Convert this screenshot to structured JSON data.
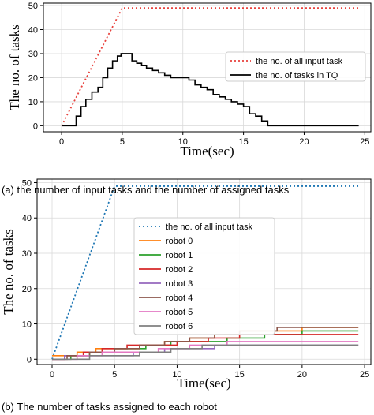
{
  "captions": {
    "a": "(a) the number of input tasks and the number of assigned tasks",
    "b": "(b) The number of tasks assigned to each robot"
  },
  "chart_data": [
    {
      "type": "line",
      "title": "",
      "xlabel": "Time(sec)",
      "ylabel": "The no. of tasks",
      "xlim": [
        -1.5,
        25.5
      ],
      "ylim": [
        -2.5,
        51
      ],
      "xticks": [
        0,
        5,
        10,
        15,
        20,
        25
      ],
      "yticks": [
        0,
        10,
        20,
        30,
        40,
        50
      ],
      "grid": true,
      "legend_position": "center-right",
      "series": [
        {
          "name": "the no. of all input task",
          "color": "#e8413c",
          "style": "dotted",
          "x": [
            0,
            5,
            24.5
          ],
          "y": [
            0,
            49,
            49
          ]
        },
        {
          "name": "the no. of tasks in TQ",
          "color": "#000000",
          "style": "solid",
          "x": [
            0,
            0.8,
            1.2,
            1.6,
            2.0,
            2.5,
            3.0,
            3.4,
            3.8,
            4.2,
            4.6,
            4.9,
            5.4,
            5.8,
            6.2,
            6.6,
            7.0,
            7.5,
            8.0,
            8.5,
            9.0,
            9.5,
            10.0,
            10.5,
            11.0,
            11.5,
            12.0,
            12.5,
            13.0,
            13.5,
            14.0,
            14.5,
            15.0,
            15.5,
            16.0,
            16.5,
            17.0,
            24.5
          ],
          "y": [
            0,
            0,
            4,
            8,
            11,
            14,
            16,
            20,
            24,
            27,
            29,
            30,
            30,
            27,
            26,
            25,
            24,
            23,
            22,
            21,
            20,
            20,
            20,
            19,
            17,
            16,
            15,
            13,
            12,
            11,
            10,
            9,
            8,
            5,
            4,
            2,
            0,
            0
          ]
        }
      ]
    },
    {
      "type": "line",
      "title": "",
      "xlabel": "Time(sec)",
      "ylabel": "The no. of tasks",
      "xlim": [
        -1.2,
        25.5
      ],
      "ylim": [
        -1.5,
        51
      ],
      "xticks": [
        0,
        5,
        10,
        15,
        20,
        25
      ],
      "yticks": [
        0,
        10,
        20,
        30,
        40,
        50
      ],
      "grid": true,
      "legend_position": "center",
      "series": [
        {
          "name": "the no. of all input task",
          "color": "#1f77b4",
          "style": "dotted",
          "x": [
            0,
            5,
            24.5
          ],
          "y": [
            0,
            49,
            49
          ]
        },
        {
          "name": "robot 0",
          "color": "#ff7f0e",
          "style": "solid",
          "x": [
            0,
            0.8,
            2.0,
            3.5,
            5.5,
            7.0,
            9.0,
            11.0,
            13.0,
            15.0,
            17.0,
            20.0,
            24.5
          ],
          "y": [
            1,
            1,
            2,
            3,
            3,
            4,
            5,
            6,
            7,
            8,
            8,
            9,
            9
          ]
        },
        {
          "name": "robot 1",
          "color": "#2ca02c",
          "style": "solid",
          "x": [
            0,
            1.5,
            3.0,
            5.0,
            7.5,
            9.5,
            11.5,
            14.0,
            17.0,
            20.0,
            24.5
          ],
          "y": [
            0,
            1,
            2,
            3,
            4,
            5,
            5,
            6,
            7,
            8,
            8
          ]
        },
        {
          "name": "robot 2",
          "color": "#d62728",
          "style": "solid",
          "x": [
            0,
            1.0,
            2.5,
            4.0,
            6.0,
            8.0,
            10.0,
            12.5,
            15.0,
            18.0,
            24.5
          ],
          "y": [
            0,
            1,
            2,
            3,
            4,
            4,
            5,
            6,
            7,
            7,
            7
          ]
        },
        {
          "name": "robot 3",
          "color": "#9467bd",
          "style": "solid",
          "x": [
            0,
            1.0,
            4.0,
            6.5,
            9.0,
            10.5,
            13.0,
            16.0,
            24.5
          ],
          "y": [
            0,
            1,
            1,
            2,
            3,
            3,
            4,
            4,
            4
          ]
        },
        {
          "name": "robot 4",
          "color": "#8c564b",
          "style": "solid",
          "x": [
            0,
            1.2,
            3.0,
            5.0,
            7.0,
            9.0,
            11.0,
            13.0,
            15.0,
            18.0,
            24.5
          ],
          "y": [
            0,
            1,
            2,
            3,
            4,
            5,
            6,
            7,
            8,
            9,
            9
          ]
        },
        {
          "name": "robot 5",
          "color": "#e377c2",
          "style": "solid",
          "x": [
            0,
            2.0,
            4.0,
            6.0,
            8.5,
            11.0,
            14.0,
            17.0,
            24.5
          ],
          "y": [
            0,
            1,
            2,
            2,
            3,
            4,
            5,
            5,
            5
          ]
        },
        {
          "name": "robot 6",
          "color": "#7f7f7f",
          "style": "solid",
          "x": [
            0,
            3.0,
            4.5,
            7.0,
            9.5,
            12.0,
            15.0,
            24.5
          ],
          "y": [
            0,
            1,
            1,
            2,
            3,
            4,
            4,
            4
          ]
        }
      ]
    }
  ]
}
